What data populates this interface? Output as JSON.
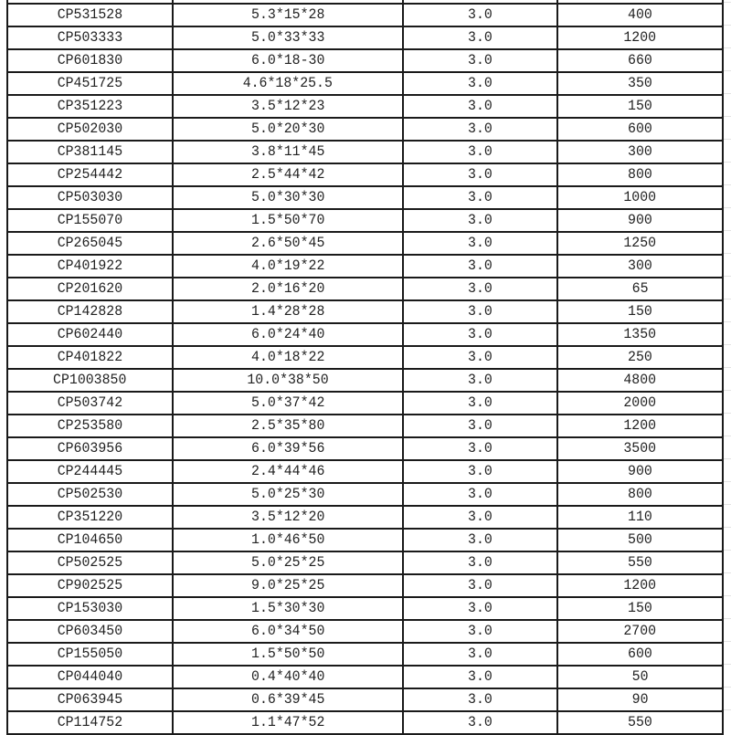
{
  "rows": [
    [
      "CP531528",
      "5.3*15*28",
      "3.0",
      "400"
    ],
    [
      "CP503333",
      "5.0*33*33",
      "3.0",
      "1200"
    ],
    [
      "CP601830",
      "6.0*18-30",
      "3.0",
      "660"
    ],
    [
      "CP451725",
      "4.6*18*25.5",
      "3.0",
      "350"
    ],
    [
      "CP351223",
      "3.5*12*23",
      "3.0",
      "150"
    ],
    [
      "CP502030",
      "5.0*20*30",
      "3.0",
      "600"
    ],
    [
      "CP381145",
      "3.8*11*45",
      "3.0",
      "300"
    ],
    [
      "CP254442",
      "2.5*44*42",
      "3.0",
      "800"
    ],
    [
      "CP503030",
      "5.0*30*30",
      "3.0",
      "1000"
    ],
    [
      "CP155070",
      "1.5*50*70",
      "3.0",
      "900"
    ],
    [
      "CP265045",
      "2.6*50*45",
      "3.0",
      "1250"
    ],
    [
      "CP401922",
      "4.0*19*22",
      "3.0",
      "300"
    ],
    [
      "CP201620",
      "2.0*16*20",
      "3.0",
      "65"
    ],
    [
      "CP142828",
      "1.4*28*28",
      "3.0",
      "150"
    ],
    [
      "CP602440",
      "6.0*24*40",
      "3.0",
      "1350"
    ],
    [
      "CP401822",
      "4.0*18*22",
      "3.0",
      "250"
    ],
    [
      "CP1003850",
      "10.0*38*50",
      "3.0",
      "4800"
    ],
    [
      "CP503742",
      "5.0*37*42",
      "3.0",
      "2000"
    ],
    [
      "CP253580",
      "2.5*35*80",
      "3.0",
      "1200"
    ],
    [
      "CP603956",
      "6.0*39*56",
      "3.0",
      "3500"
    ],
    [
      "CP244445",
      "2.4*44*46",
      "3.0",
      "900"
    ],
    [
      "CP502530",
      "5.0*25*30",
      "3.0",
      "800"
    ],
    [
      "CP351220",
      "3.5*12*20",
      "3.0",
      "110"
    ],
    [
      "CP104650",
      "1.0*46*50",
      "3.0",
      "500"
    ],
    [
      "CP502525",
      "5.0*25*25",
      "3.0",
      "550"
    ],
    [
      "CP902525",
      "9.0*25*25",
      "3.0",
      "1200"
    ],
    [
      "CP153030",
      "1.5*30*30",
      "3.0",
      "150"
    ],
    [
      "CP603450",
      "6.0*34*50",
      "3.0",
      "2700"
    ],
    [
      "CP155050",
      "1.5*50*50",
      "3.0",
      "600"
    ],
    [
      "CP044040",
      "0.4*40*40",
      "3.0",
      "50"
    ],
    [
      "CP063945",
      "0.6*39*45",
      "3.0",
      "90"
    ],
    [
      "CP114752",
      "1.1*47*52",
      "3.0",
      "550"
    ]
  ]
}
